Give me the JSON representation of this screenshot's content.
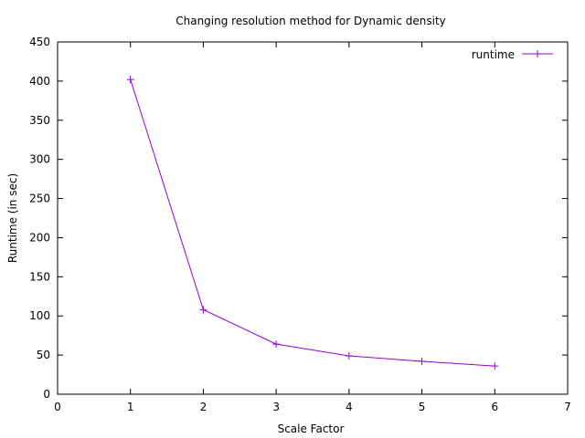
{
  "chart_data": {
    "type": "line",
    "title": "Changing resolution method for Dynamic density",
    "xlabel": "Scale Factor",
    "ylabel": "Runtime (in sec)",
    "xlim": [
      0,
      7
    ],
    "ylim": [
      0,
      450
    ],
    "xticks": [
      0,
      1,
      2,
      3,
      4,
      5,
      6,
      7
    ],
    "yticks": [
      0,
      50,
      100,
      150,
      200,
      250,
      300,
      350,
      400,
      450
    ],
    "grid": false,
    "legend_position": "top-right",
    "series": [
      {
        "name": "runtime",
        "color": "#9400d3",
        "marker": "plus",
        "points": [
          {
            "x": 1,
            "y": 402
          },
          {
            "x": 2,
            "y": 108
          },
          {
            "x": 3,
            "y": 64
          },
          {
            "x": 4,
            "y": 49
          },
          {
            "x": 5,
            "y": 42
          },
          {
            "x": 6,
            "y": 36
          }
        ]
      }
    ]
  }
}
